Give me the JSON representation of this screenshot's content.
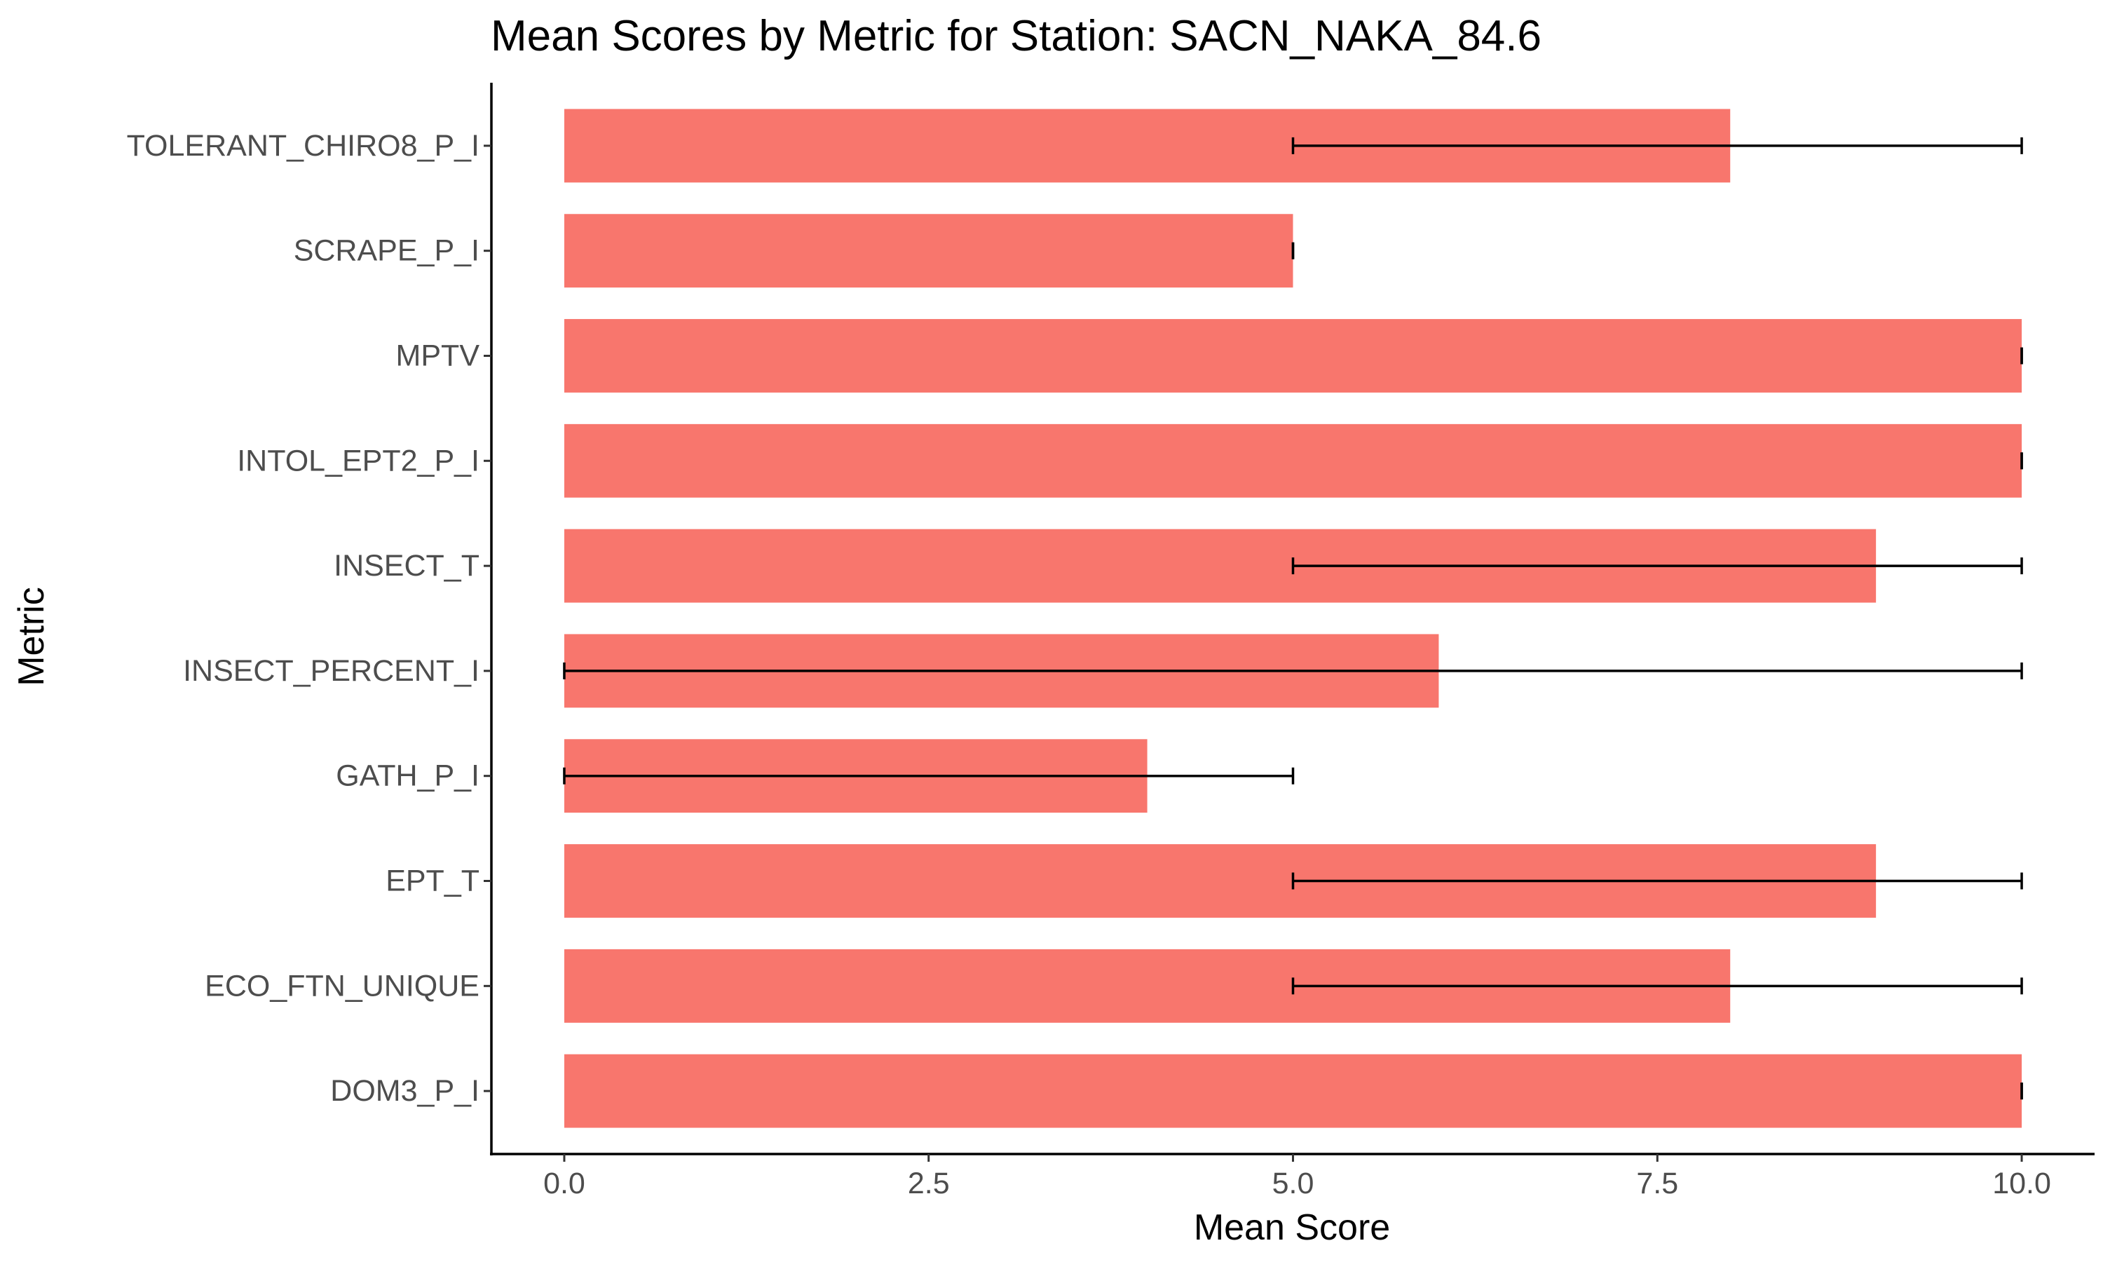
{
  "chart_data": {
    "type": "bar",
    "orientation": "horizontal",
    "title": "Mean Scores by Metric for Station: SACN_NAKA_84.6",
    "xlabel": "Mean Score",
    "ylabel": "Metric",
    "xlim": [
      -0.5,
      10.5
    ],
    "xticks": [
      0.0,
      2.5,
      5.0,
      7.5,
      10.0
    ],
    "xtick_labels": [
      "0.0",
      "2.5",
      "5.0",
      "7.5",
      "10.0"
    ],
    "categories": [
      "DOM3_P_I",
      "ECO_FTN_UNIQUE",
      "EPT_T",
      "GATH_P_I",
      "INSECT_PERCENT_I",
      "INSECT_T",
      "INTOL_EPT2_P_I",
      "MPTV",
      "SCRAPE_P_I",
      "TOLERANT_CHIRO8_P_I"
    ],
    "values": [
      10,
      8,
      9,
      4,
      6,
      9,
      10,
      10,
      5,
      8
    ],
    "error_low": [
      10,
      5,
      5,
      0,
      0,
      5,
      10,
      10,
      5,
      5
    ],
    "error_high": [
      10,
      10,
      10,
      5,
      10,
      10,
      10,
      10,
      5,
      10
    ],
    "bar_color": "#F8766D",
    "error_color": "#000000",
    "grid": false,
    "legend": "none"
  }
}
